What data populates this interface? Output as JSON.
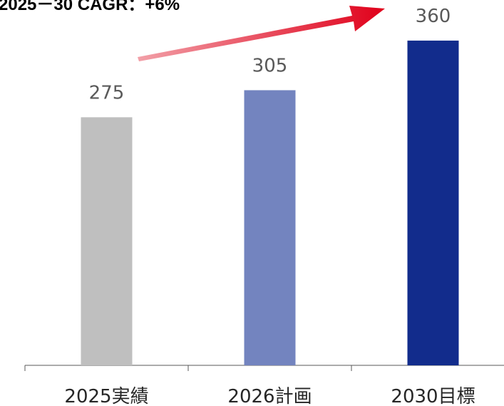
{
  "chart_data": {
    "type": "bar",
    "annotation": "2025－30 CAGR：+6%",
    "categories": [
      "2025実績",
      "2026計画",
      "2030目標"
    ],
    "values": [
      275,
      305,
      360
    ],
    "colors": [
      "#bfbfbf",
      "#7384bf",
      "#122c8c"
    ],
    "ylim": [
      0,
      405
    ]
  }
}
